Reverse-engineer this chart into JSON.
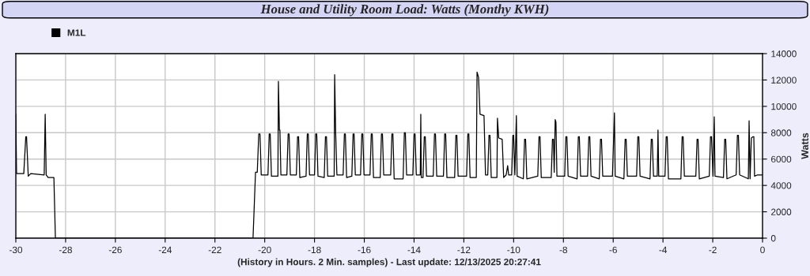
{
  "chart_data": {
    "type": "line",
    "title": "House and Utility Room Load: Watts (Monthy KWH)",
    "xlabel": "(History in Hours. 2 Min. samples) - Last update: 12/13/2025 20:27:41",
    "ylabel": "Watts",
    "xlim": [
      -30,
      0
    ],
    "xticks": [
      -30,
      -28,
      -26,
      -24,
      -22,
      -20,
      -18,
      -16,
      -14,
      -12,
      -10,
      -8,
      -6,
      -4,
      -2,
      0
    ],
    "ylim": [
      0,
      14000
    ],
    "yticks": [
      0,
      2000,
      4000,
      6000,
      8000,
      10000,
      12000,
      14000
    ],
    "grid": true,
    "legend": "top left",
    "marker": "none",
    "line_style": "solid",
    "series": [
      {
        "name": "M1L",
        "color": "#000000",
        "x": [
          -30.0,
          -29.97,
          -29.68,
          -29.6,
          -29.57,
          -29.5,
          -29.4,
          -28.86,
          -28.82,
          -28.78,
          -28.7,
          -28.47,
          -28.41,
          -20.47,
          -20.37,
          -20.3,
          -20.24,
          -20.19,
          -20.14,
          -19.87,
          -19.82,
          -19.78,
          -19.73,
          -19.47,
          -19.45,
          -19.41,
          -19.39,
          -19.35,
          -19.11,
          -19.06,
          -19.02,
          -18.97,
          -18.73,
          -18.68,
          -18.64,
          -18.59,
          -18.34,
          -18.29,
          -18.25,
          -18.2,
          -18.0,
          -17.95,
          -17.91,
          -17.86,
          -17.61,
          -17.56,
          -17.52,
          -17.47,
          -17.21,
          -17.19,
          -17.15,
          -17.1,
          -16.85,
          -16.8,
          -16.76,
          -16.71,
          -16.5,
          -16.45,
          -16.41,
          -16.36,
          -16.15,
          -16.1,
          -16.06,
          -16.01,
          -15.77,
          -15.72,
          -15.68,
          -15.63,
          -15.36,
          -15.31,
          -15.27,
          -15.22,
          -14.94,
          -14.89,
          -14.85,
          -14.8,
          -14.44,
          -14.39,
          -14.35,
          -14.3,
          -14.05,
          -14.0,
          -13.96,
          -13.91,
          -13.75,
          -13.73,
          -13.71,
          -13.64,
          -13.59,
          -13.55,
          -13.5,
          -13.23,
          -13.18,
          -13.14,
          -13.09,
          -12.82,
          -12.77,
          -12.73,
          -12.68,
          -12.37,
          -12.32,
          -12.28,
          -12.23,
          -11.89,
          -11.84,
          -11.8,
          -11.75,
          -11.5,
          -11.47,
          -11.41,
          -11.35,
          -11.19,
          -11.13,
          -11.04,
          -10.99,
          -10.95,
          -10.9,
          -10.67,
          -10.65,
          -10.6,
          -10.46,
          -10.4,
          -10.3,
          -10.24,
          -10.2,
          -10.08,
          -10.03,
          -10.0,
          -9.95,
          -9.89,
          -9.86,
          -9.61,
          -9.56,
          -9.52,
          -9.47,
          -9.03,
          -8.98,
          -8.94,
          -8.89,
          -8.49,
          -8.44,
          -8.4,
          -8.37,
          -8.33,
          -8.3,
          -8.26,
          -7.95,
          -7.9,
          -7.86,
          -7.81,
          -7.45,
          -7.4,
          -7.36,
          -7.31,
          -7.03,
          -6.98,
          -6.94,
          -6.89,
          -6.56,
          -6.51,
          -6.47,
          -6.42,
          -6.03,
          -5.98,
          -5.95,
          -5.92,
          -5.57,
          -5.52,
          -5.48,
          -5.43,
          -5.06,
          -5.01,
          -4.97,
          -4.92,
          -4.52,
          -4.47,
          -4.43,
          -4.38,
          -4.23,
          -4.2,
          -4.17,
          -3.92,
          -3.87,
          -3.83,
          -3.78,
          -3.28,
          -3.23,
          -3.19,
          -3.14,
          -2.68,
          -2.63,
          -2.59,
          -2.54,
          -2.14,
          -2.09,
          -2.05,
          -1.99,
          -1.94,
          -1.91,
          -1.57,
          -1.52,
          -1.48,
          -1.43,
          -1.06,
          -1.01,
          -0.97,
          -0.92,
          -0.57,
          -0.54,
          -0.5,
          -0.45,
          -0.38,
          -0.35,
          -0.32,
          -0.2,
          0.0
        ],
        "values": [
          9400,
          4900,
          4900,
          7700,
          7700,
          4700,
          4900,
          4800,
          9400,
          4800,
          4600,
          4600,
          0,
          0,
          5000,
          5000,
          7900,
          7900,
          4800,
          4800,
          7900,
          7900,
          4700,
          4700,
          11900,
          8200,
          8200,
          4800,
          4800,
          7900,
          7900,
          4800,
          4800,
          7700,
          7700,
          4600,
          4700,
          7900,
          7900,
          4800,
          4800,
          7900,
          7900,
          4700,
          4600,
          7700,
          7700,
          4700,
          4700,
          12400,
          8000,
          4800,
          4800,
          7900,
          7900,
          4600,
          4700,
          7900,
          7900,
          4800,
          4800,
          7900,
          7900,
          4800,
          4800,
          7900,
          7900,
          4600,
          4600,
          7900,
          7900,
          4800,
          4800,
          7900,
          7900,
          4500,
          4500,
          8000,
          8000,
          4800,
          4800,
          7900,
          7900,
          4800,
          4800,
          9400,
          4600,
          4600,
          7700,
          7700,
          4700,
          4700,
          7900,
          7900,
          4700,
          4700,
          7900,
          7900,
          4600,
          4600,
          7800,
          7800,
          4700,
          4700,
          7900,
          7900,
          4600,
          4600,
          12600,
          12200,
          9400,
          9300,
          4800,
          4800,
          7800,
          7800,
          4600,
          4600,
          9100,
          7600,
          7500,
          4600,
          4800,
          5500,
          4800,
          4800,
          7800,
          7800,
          4800,
          9300,
          4700,
          4500,
          7500,
          7500,
          4500,
          4700,
          7700,
          7700,
          4600,
          4600,
          7500,
          7500,
          5000,
          9000,
          8800,
          4700,
          4700,
          7700,
          7700,
          4700,
          4500,
          7700,
          7700,
          4700,
          4700,
          7700,
          7700,
          4700,
          4500,
          7500,
          7500,
          4700,
          4700,
          7700,
          9500,
          4700,
          4500,
          7500,
          7500,
          4700,
          4700,
          7700,
          7700,
          4700,
          4500,
          7500,
          7500,
          4700,
          4700,
          8200,
          4700,
          4700,
          7700,
          7700,
          4500,
          4500,
          7700,
          7700,
          4700,
          4700,
          7500,
          7500,
          4500,
          4700,
          7700,
          7700,
          4700,
          9200,
          4700,
          4600,
          7500,
          7500,
          4500,
          4800,
          7800,
          7800,
          4800,
          4500,
          8900,
          4500,
          7600,
          7700,
          7700,
          4700,
          4800,
          4800
        ]
      }
    ]
  }
}
